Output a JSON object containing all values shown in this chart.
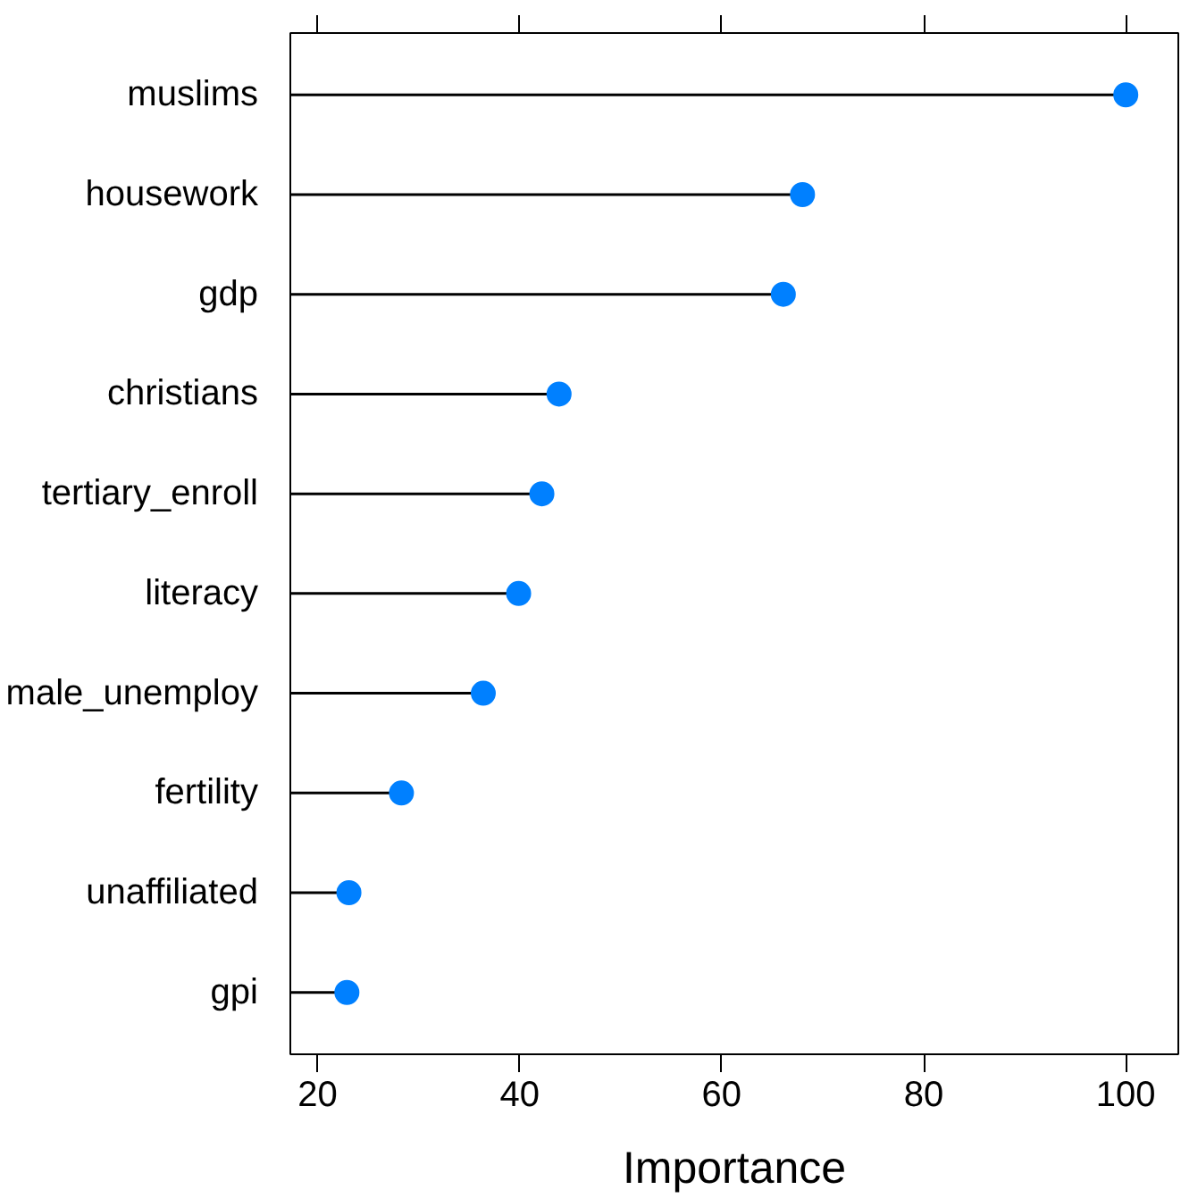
{
  "chart_data": {
    "type": "lollipop",
    "orientation": "horizontal",
    "xlabel": "Importance",
    "categories": [
      "muslims",
      "housework",
      "gdp",
      "christians",
      "tertiary_enroll",
      "literacy",
      "male_unemploy",
      "fertility",
      "unaffiliated",
      "gpi"
    ],
    "values": [
      100,
      68.0,
      66.1,
      43.9,
      42.2,
      39.9,
      36.4,
      28.3,
      23.1,
      22.9
    ],
    "color": "#0080ff",
    "marker": "circle",
    "grid": false,
    "xlim": [
      17.3,
      105.2
    ],
    "xticks": [
      20,
      40,
      60,
      80,
      100
    ]
  }
}
